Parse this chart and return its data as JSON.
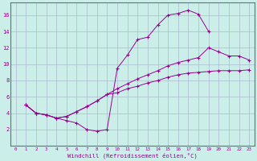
{
  "xlabel": "Windchill (Refroidissement éolien,°C)",
  "background_color": "#cceee8",
  "line_color": "#990099",
  "grid_color": "#aabbcc",
  "spine_color": "#6666aa",
  "xlim": [
    -0.5,
    23.5
  ],
  "ylim": [
    0,
    17.5
  ],
  "xticks": [
    0,
    1,
    2,
    3,
    4,
    5,
    6,
    7,
    8,
    9,
    10,
    11,
    12,
    13,
    14,
    15,
    16,
    17,
    18,
    19,
    20,
    21,
    22,
    23
  ],
  "yticks": [
    2,
    4,
    6,
    8,
    10,
    12,
    14,
    16
  ],
  "line1_x": [
    1,
    2,
    3,
    4,
    5,
    6,
    7,
    8,
    9,
    10,
    11,
    12,
    13,
    14,
    15,
    16,
    17,
    18,
    19
  ],
  "line1_y": [
    5.0,
    4.0,
    3.8,
    3.4,
    3.1,
    2.8,
    2.0,
    1.8,
    2.0,
    9.5,
    11.1,
    13.0,
    13.3,
    14.8,
    16.0,
    16.2,
    16.6,
    16.1,
    14.0
  ],
  "line2_x": [
    1,
    2,
    3,
    4,
    5,
    6,
    7,
    8,
    9,
    10,
    11,
    12,
    13,
    14,
    15,
    16,
    17,
    18,
    19,
    20,
    21,
    22,
    23
  ],
  "line2_y": [
    5.0,
    4.0,
    3.8,
    3.4,
    3.6,
    4.2,
    4.8,
    5.5,
    6.3,
    7.0,
    7.6,
    8.2,
    8.7,
    9.2,
    9.8,
    10.2,
    10.5,
    10.8,
    12.0,
    11.5,
    11.0,
    11.0,
    10.5
  ],
  "line3_x": [
    1,
    2,
    3,
    4,
    5,
    6,
    7,
    8,
    9,
    10,
    11,
    12,
    13,
    14,
    15,
    16,
    17,
    18,
    19,
    20,
    21,
    22,
    23
  ],
  "line3_y": [
    5.0,
    4.0,
    3.8,
    3.4,
    3.6,
    4.2,
    4.8,
    5.5,
    6.3,
    6.5,
    7.0,
    7.3,
    7.7,
    8.0,
    8.4,
    8.7,
    8.9,
    9.0,
    9.1,
    9.2,
    9.2,
    9.2,
    9.3
  ]
}
